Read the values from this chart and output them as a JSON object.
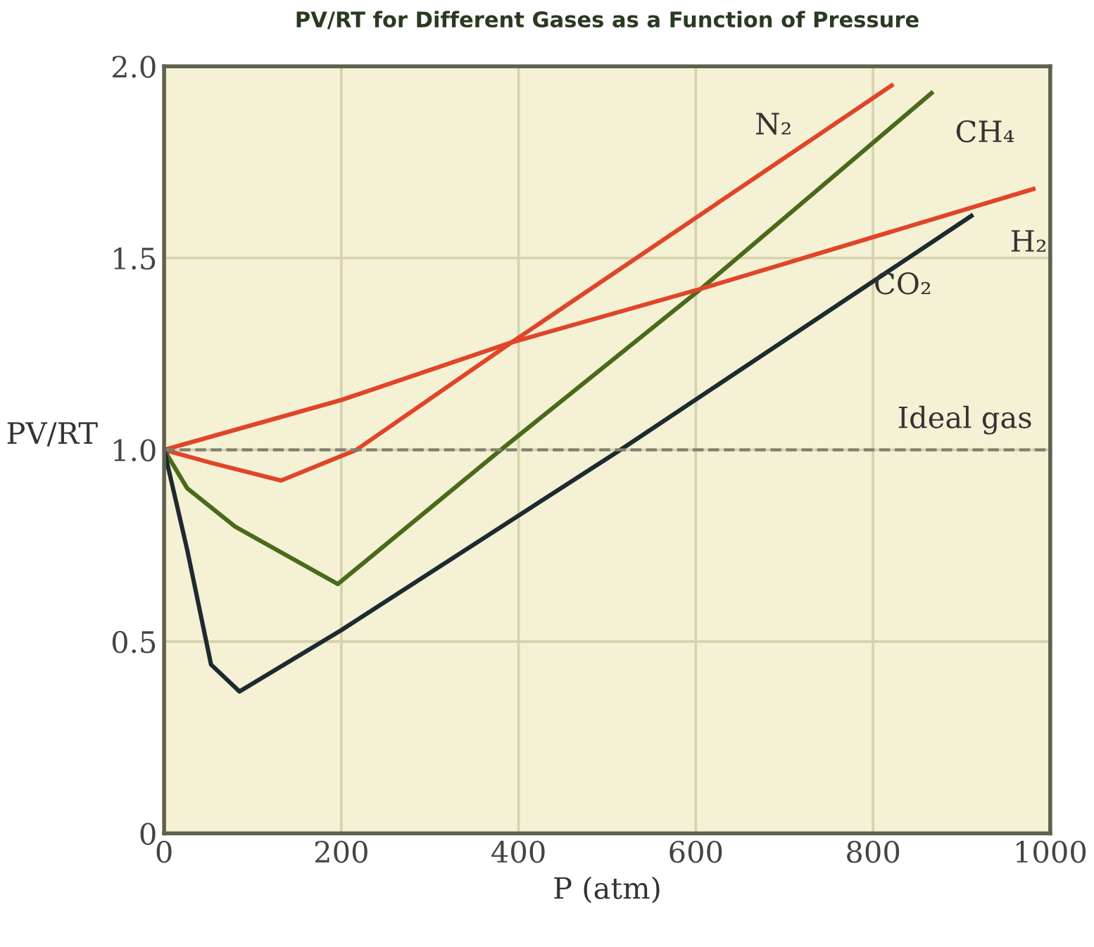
{
  "chart_data": {
    "type": "line",
    "title": "PV/RT for Different Gases as a Function of Pressure",
    "xlabel": "P (atm)",
    "ylabel": "PV/RT",
    "series": [
      {
        "name": "N₂",
        "color": "#e0452a",
        "x": [
          0,
          53,
          132,
          217,
          392,
          821
        ],
        "values": [
          1.0,
          0.966,
          0.92,
          1.0,
          1.28,
          1.95
        ]
      },
      {
        "name": "CH₄",
        "color": "#4a6a1a",
        "x": [
          0,
          26,
          80,
          196,
          380,
          606,
          866
        ],
        "values": [
          1.0,
          0.9,
          0.8,
          0.65,
          1.0,
          1.42,
          1.93
        ]
      },
      {
        "name": "H₂",
        "color": "#e0452a",
        "x": [
          0,
          200,
          392,
          606,
          981
        ],
        "values": [
          1.0,
          1.13,
          1.28,
          1.42,
          1.68
        ]
      },
      {
        "name": "CO₂",
        "color": "#1e2a30",
        "x": [
          0,
          26,
          53,
          85,
          200,
          515,
          911
        ],
        "values": [
          1.0,
          0.74,
          0.44,
          0.37,
          0.53,
          1.0,
          1.61
        ]
      }
    ],
    "ref_lines": [
      {
        "axis": "y",
        "value": 1.0,
        "label": "Ideal gas",
        "color": "#808070",
        "line_style": "dashed"
      }
    ],
    "xlim": [
      0,
      1000
    ],
    "xticks": [
      0,
      200,
      400,
      600,
      800,
      1000
    ],
    "ylim": [
      0,
      2.0
    ],
    "yticks": [
      0,
      0.5,
      {
        "value": 1.0,
        "label": "1.0"
      },
      1.5,
      {
        "value": 2.0,
        "label": "2.0"
      }
    ],
    "grid": true,
    "legend": false,
    "marker": "none",
    "line_style": "solid"
  }
}
